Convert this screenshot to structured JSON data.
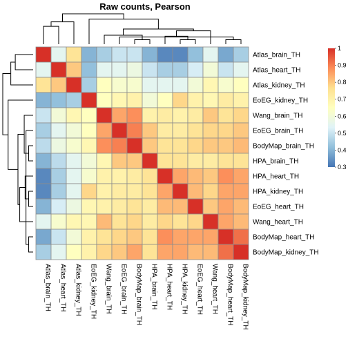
{
  "chart_data": {
    "type": "heatmap",
    "title": "Raw counts, Pearson",
    "rows": [
      "Atlas_brain_TH",
      "Atlas_heart_TH",
      "Atlas_kidney_TH",
      "EoEG_kidney_TH",
      "Wang_brain_TH",
      "EoEG_brain_TH",
      "BodyMap_brain_TH",
      "HPA_brain_TH",
      "HPA_heart_TH",
      "HPA_kidney_TH",
      "EoEG_heart_TH",
      "Wang_heart_TH",
      "BodyMap_heart_TH",
      "BodyMap_kidney_TH"
    ],
    "columns": [
      "Atlas_brain_TH",
      "Atlas_heart_TH",
      "Atlas_kidney_TH",
      "EoEG_kidney_TH",
      "Wang_brain_TH",
      "EoEG_brain_TH",
      "BodyMap_brain_TH",
      "HPA_brain_TH",
      "HPA_heart_TH",
      "HPA_kidney_TH",
      "EoEG_heart_TH",
      "Wang_heart_TH",
      "BodyMap_heart_TH",
      "BodyMap_kidney_TH"
    ],
    "values": [
      [
        1.0,
        0.55,
        0.75,
        0.4,
        0.45,
        0.5,
        0.5,
        0.4,
        0.33,
        0.33,
        0.42,
        0.55,
        0.38,
        0.45
      ],
      [
        0.55,
        1.0,
        0.8,
        0.42,
        0.55,
        0.55,
        0.58,
        0.5,
        0.45,
        0.45,
        0.52,
        0.6,
        0.5,
        0.55
      ],
      [
        0.75,
        0.8,
        1.0,
        0.45,
        0.65,
        0.62,
        0.62,
        0.55,
        0.55,
        0.55,
        0.6,
        0.68,
        0.62,
        0.65
      ],
      [
        0.4,
        0.42,
        0.45,
        1.0,
        0.65,
        0.68,
        0.7,
        0.6,
        0.65,
        0.78,
        0.7,
        0.68,
        0.72,
        0.7
      ],
      [
        0.5,
        0.6,
        0.68,
        0.65,
        1.0,
        0.85,
        0.88,
        0.7,
        0.72,
        0.7,
        0.72,
        0.8,
        0.75,
        0.78
      ],
      [
        0.45,
        0.55,
        0.6,
        0.65,
        0.85,
        1.0,
        0.9,
        0.8,
        0.72,
        0.72,
        0.75,
        0.78,
        0.78,
        0.8
      ],
      [
        0.48,
        0.58,
        0.62,
        0.68,
        0.88,
        0.9,
        1.0,
        0.8,
        0.75,
        0.75,
        0.78,
        0.8,
        0.8,
        0.82
      ],
      [
        0.4,
        0.48,
        0.55,
        0.6,
        0.68,
        0.8,
        0.8,
        1.0,
        0.75,
        0.75,
        0.72,
        0.72,
        0.75,
        0.75
      ],
      [
        0.33,
        0.45,
        0.55,
        0.62,
        0.7,
        0.7,
        0.72,
        0.75,
        1.0,
        0.85,
        0.82,
        0.8,
        0.88,
        0.85
      ],
      [
        0.33,
        0.45,
        0.55,
        0.78,
        0.7,
        0.72,
        0.72,
        0.75,
        0.85,
        1.0,
        0.82,
        0.78,
        0.85,
        0.85
      ],
      [
        0.4,
        0.52,
        0.58,
        0.68,
        0.7,
        0.72,
        0.75,
        0.72,
        0.82,
        0.82,
        1.0,
        0.8,
        0.85,
        0.82
      ],
      [
        0.55,
        0.62,
        0.68,
        0.68,
        0.82,
        0.75,
        0.78,
        0.72,
        0.78,
        0.75,
        0.78,
        1.0,
        0.85,
        0.82
      ],
      [
        0.38,
        0.5,
        0.6,
        0.7,
        0.75,
        0.78,
        0.8,
        0.75,
        0.88,
        0.85,
        0.85,
        0.85,
        1.0,
        0.92
      ],
      [
        0.45,
        0.55,
        0.65,
        0.7,
        0.78,
        0.8,
        0.85,
        0.75,
        0.85,
        0.85,
        0.82,
        0.82,
        0.92,
        1.0
      ]
    ],
    "colorbar": {
      "min": 0.3,
      "max": 1.0,
      "ticks": [
        "0.3",
        "0.4",
        "0.5",
        "0.6",
        "0.7",
        "0.8",
        "0.9",
        "1"
      ],
      "stops": [
        "#4575b4",
        "#91bfdb",
        "#e0f3f8",
        "#ffffbf",
        "#fee090",
        "#fc8d59",
        "#d73027"
      ]
    },
    "dendrogram": {
      "merges": [
        [
          -7,
          -8
        ],
        [
          -13,
          -14
        ],
        [
          -6,
          2
        ],
        [
          -5,
          1
        ],
        [
          -10,
          -11
        ],
        [
          -9,
          5
        ],
        [
          3,
          6
        ],
        [
          -12,
          7
        ],
        [
          4,
          8
        ],
        [
          -1,
          -2
        ],
        [
          -3,
          10
        ],
        [
          -4,
          9
        ],
        [
          11,
          12
        ]
      ],
      "heights": [
        0.05,
        0.05,
        0.08,
        0.1,
        0.05,
        0.09,
        0.12,
        0.15,
        0.17,
        0.2,
        0.25,
        0.28,
        0.34
      ]
    }
  }
}
